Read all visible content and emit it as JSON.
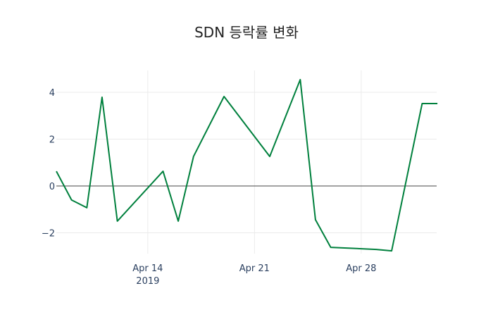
{
  "chart_data": {
    "type": "line",
    "title": "SDN 등락률 변화",
    "xlabel": "",
    "ylabel": "",
    "x": [
      "2019-04-08",
      "2019-04-09",
      "2019-04-10",
      "2019-04-11",
      "2019-04-12",
      "2019-04-15",
      "2019-04-16",
      "2019-04-17",
      "2019-04-19",
      "2019-04-22",
      "2019-04-24",
      "2019-04-25",
      "2019-04-26",
      "2019-04-29",
      "2019-04-30",
      "2019-05-02",
      "2019-05-03"
    ],
    "series": [
      {
        "name": "SDN",
        "color": "#00803d",
        "values": [
          0.63,
          -0.6,
          -0.93,
          3.79,
          -1.5,
          0.63,
          -1.5,
          1.26,
          3.82,
          1.26,
          4.54,
          -1.44,
          -2.62,
          -2.71,
          -2.77,
          3.52,
          3.52
        ]
      }
    ],
    "x_ticks": [
      {
        "label": "Apr 14",
        "sub": "2019",
        "date": "2019-04-14"
      },
      {
        "label": "Apr 21",
        "date": "2019-04-21"
      },
      {
        "label": "Apr 28",
        "date": "2019-04-28"
      }
    ],
    "y_ticks": [
      {
        "label": "4",
        "value": 4
      },
      {
        "label": "2",
        "value": 2
      },
      {
        "label": "0",
        "value": 0
      },
      {
        "label": "−2",
        "value": -2
      }
    ],
    "ylim": [
      -3.0,
      5.0
    ],
    "grid": true,
    "legend": false
  }
}
